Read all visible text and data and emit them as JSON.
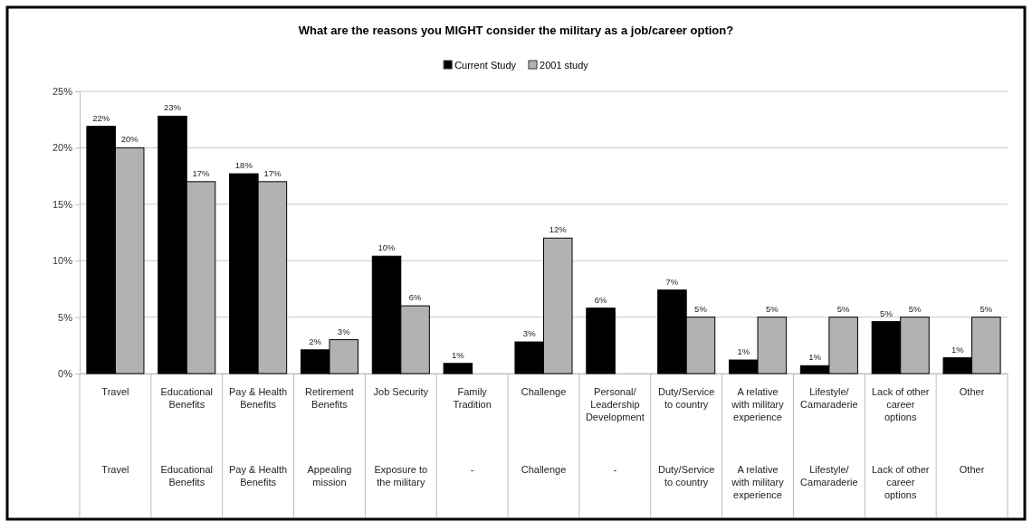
{
  "chart_data": {
    "type": "bar",
    "title": "What are the reasons you MIGHT consider the military as a job/career option?",
    "categories": [
      "Travel",
      "Educational\nBenefits",
      "Pay & Health\nBenefits",
      "Retirement\nBenefits",
      "Job Security",
      "Family\nTradition",
      "Challenge",
      "Personal/\nLeadership\nDevelopment",
      "Duty/Service\nto country",
      "A relative\nwith military\nexperience",
      "Lifestyle/\nCamaraderie",
      "Lack of other\ncareer\noptions",
      "Other"
    ],
    "series": [
      {
        "name": "Current Study",
        "color": "#000000",
        "values": [
          21.9,
          22.8,
          17.7,
          2.1,
          10.4,
          0.9,
          2.8,
          5.8,
          7.4,
          1.2,
          0.7,
          4.6,
          1.4
        ],
        "value_labels": [
          "22%",
          "23%",
          "18%",
          "2%",
          "10%",
          "1%",
          "3%",
          "6%",
          "7%",
          "1%",
          "1%",
          "5%",
          "1%"
        ]
      },
      {
        "name": "2001 study",
        "color": "#b2b2b2",
        "values": [
          20,
          17,
          17,
          3,
          6,
          null,
          12,
          null,
          5,
          5,
          5,
          5,
          5
        ],
        "value_labels": [
          "20%",
          "17%",
          "17%",
          "3%",
          "6%",
          null,
          "12%",
          null,
          "5%",
          "5%",
          "5%",
          "5%",
          "5%"
        ]
      }
    ],
    "annotations": [
      "Travel",
      "Educational\nBenefits",
      "Pay & Health\nBenefits",
      "Appealing\nmission",
      "Exposure to\nthe military",
      "-",
      "Challenge",
      "-",
      "Duty/Service\nto country",
      "A relative\nwith military\nexperience",
      "Lifestyle/\nCamaraderie",
      "Lack of other\ncareer\noptions",
      "Other"
    ],
    "ylim": [
      0,
      25
    ],
    "yticks": [
      {
        "value": 0,
        "label": "0%"
      },
      {
        "value": 5,
        "label": "5%"
      },
      {
        "value": 10,
        "label": "10%"
      },
      {
        "value": 15,
        "label": "15%"
      },
      {
        "value": 20,
        "label": "20%"
      },
      {
        "value": 25,
        "label": "25%"
      }
    ],
    "grid": "y",
    "legend": "top"
  }
}
